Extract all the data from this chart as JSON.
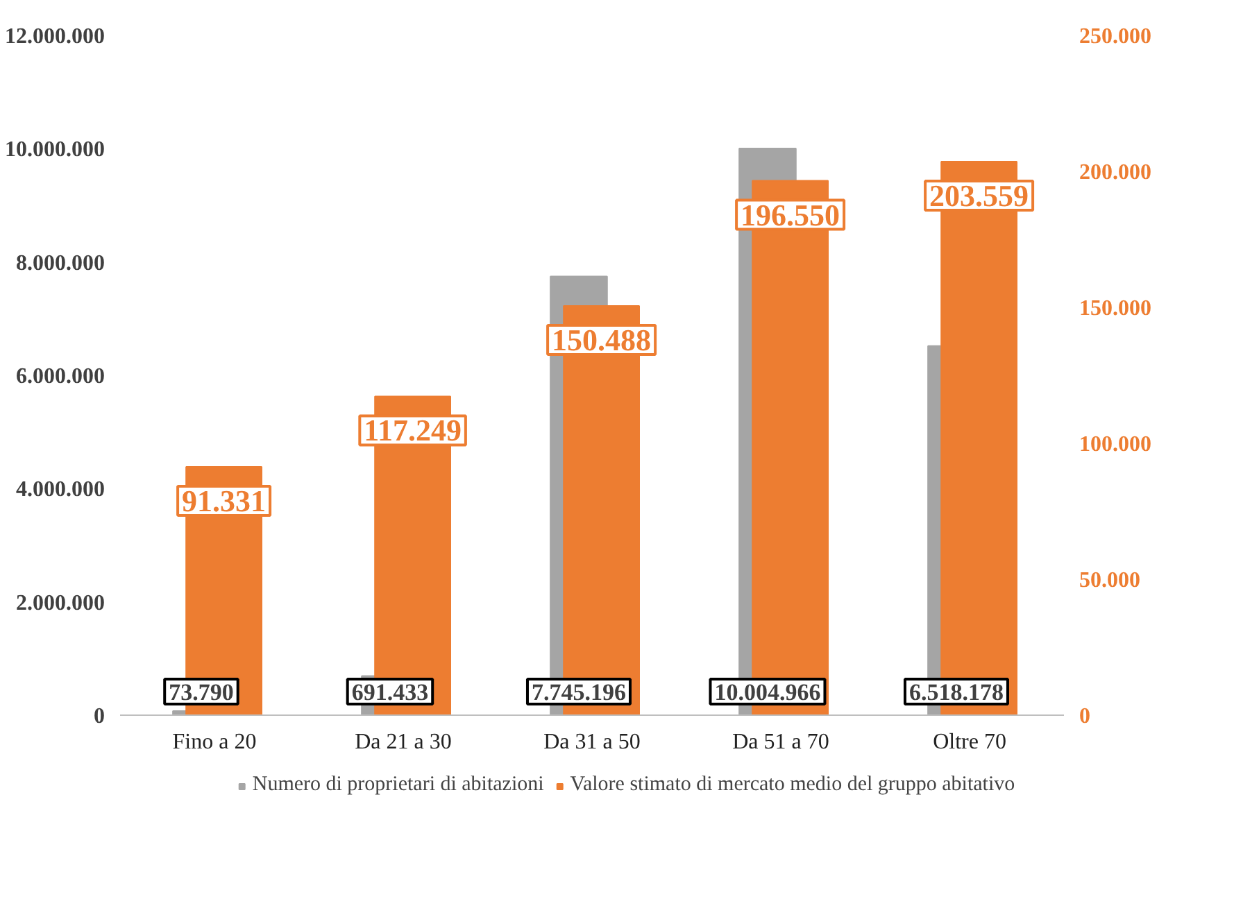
{
  "chart_data": {
    "type": "bar",
    "categories": [
      "Fino a 20",
      "Da 21 a 30",
      "Da 31 a 50",
      "Da 51 a 70",
      "Oltre 70"
    ],
    "series": [
      {
        "name": "Numero di proprietari di abitazioni",
        "color": "#a5a5a5",
        "values": [
          73790,
          691433,
          7745196,
          10004966,
          6518178
        ],
        "value_labels": [
          "73.790",
          "691.433",
          "7.745.196",
          "10.004.966",
          "6.518.178"
        ]
      },
      {
        "name": "Valore stimato di mercato medio del gruppo abitativo",
        "color": "#ed7d31",
        "axis": "y2",
        "values": [
          91331,
          117249,
          150488,
          196550,
          203559
        ],
        "value_labels": [
          "91.331",
          "117.249",
          "150.488",
          "196.550",
          "203.559"
        ]
      }
    ],
    "ylim": [
      0,
      12000000
    ],
    "yticks": [
      0,
      {
        "value": 2000000,
        "label": "2.000.000"
      },
      {
        "value": 4000000,
        "label": "4.000.000"
      },
      {
        "value": 6000000,
        "label": "6.000.000"
      },
      {
        "value": 8000000,
        "label": "8.000.000"
      },
      {
        "value": 10000000,
        "label": "10.000.000"
      },
      {
        "value": 12000000,
        "label": "12.000.000"
      }
    ],
    "y2lim": [
      0,
      250000
    ],
    "y2ticks": [
      0,
      {
        "value": 50000,
        "label": "50.000"
      },
      {
        "value": 100000,
        "label": "100.000"
      },
      {
        "value": 150000,
        "label": "150.000"
      },
      {
        "value": 200000,
        "label": "200.000"
      },
      {
        "value": 250000,
        "label": "250.000"
      }
    ],
    "grid": false,
    "legend": "bottom"
  }
}
